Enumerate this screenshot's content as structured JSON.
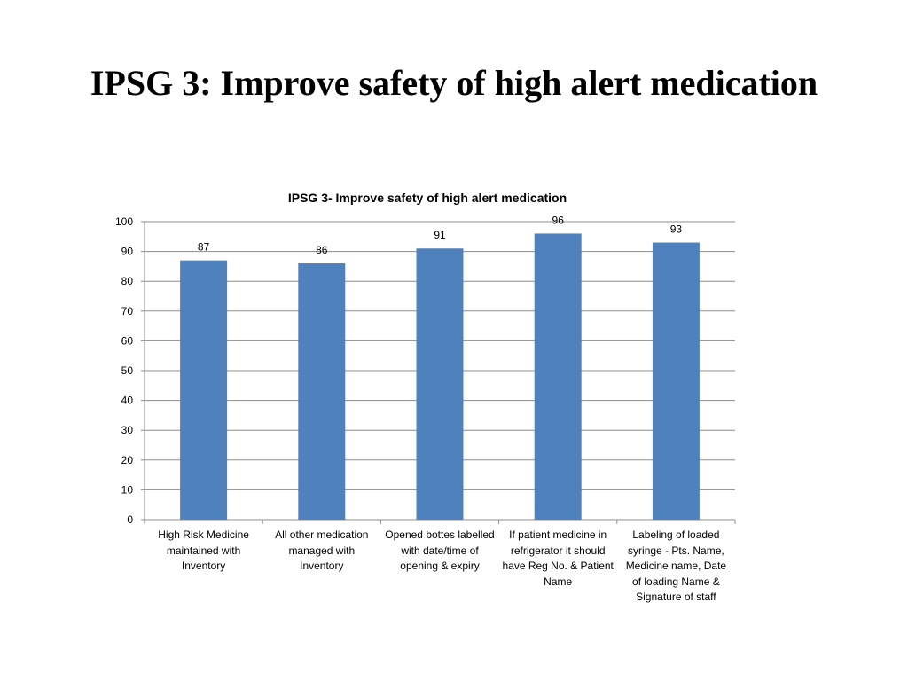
{
  "slide": {
    "title": "IPSG 3: Improve safety of high alert medication"
  },
  "chart_data": {
    "type": "bar",
    "title": "IPSG 3- Improve safety of high alert medication",
    "xlabel": "",
    "ylabel": "",
    "ylim": [
      0,
      100
    ],
    "yticks": [
      0,
      10,
      20,
      30,
      40,
      50,
      60,
      70,
      80,
      90,
      100
    ],
    "categories": [
      "High Risk Medicine maintained with Inventory",
      "All other medication managed with Inventory",
      "Opened bottes labelled with date/time of opening & expiry",
      "If patient medicine in refrigerator it should have Reg No. & Patient Name",
      "Labeling of loaded syringe - Pts. Name, Medicine name, Date of loading Name & Signature of staff"
    ],
    "values": [
      87,
      86,
      91,
      96,
      93
    ],
    "data_labels": [
      "87",
      "86",
      "91",
      "96",
      "93"
    ],
    "bar_color": "#4F81BD",
    "grid": true,
    "legend": "none"
  }
}
